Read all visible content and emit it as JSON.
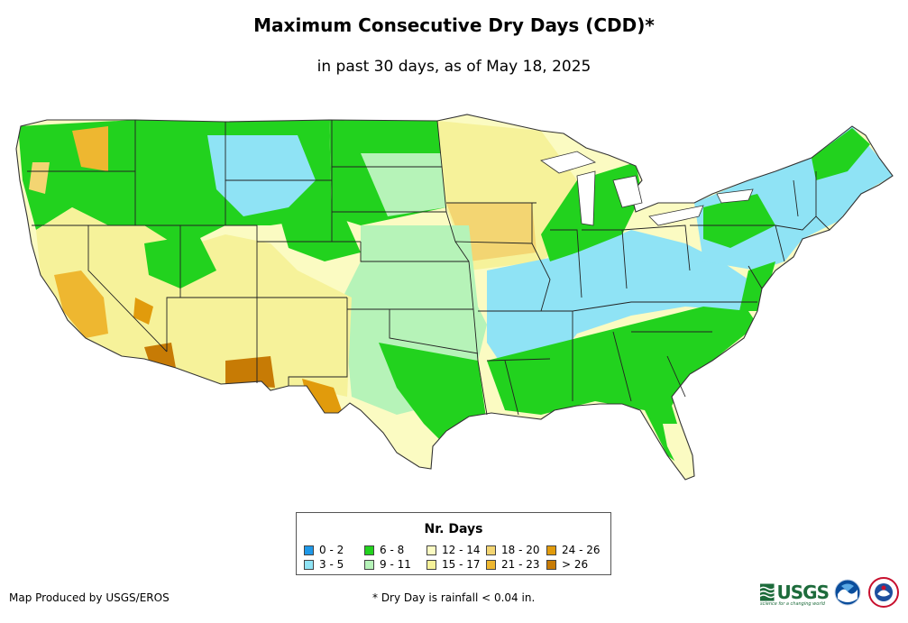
{
  "header": {
    "title": "Maximum Consecutive Dry Days (CDD)*",
    "subtitle": "in past 30 days, as of May 18, 2025"
  },
  "legend": {
    "title": "Nr. Days",
    "items": [
      {
        "label": "0 - 2",
        "color": "#1f98e8"
      },
      {
        "label": "3 - 5",
        "color": "#8fe3f5"
      },
      {
        "label": "6 - 8",
        "color": "#22d21e"
      },
      {
        "label": "9 - 11",
        "color": "#b6f3b8"
      },
      {
        "label": "12 - 14",
        "color": "#fbfbc2"
      },
      {
        "label": "15 - 17",
        "color": "#f6f29a"
      },
      {
        "label": "18 - 20",
        "color": "#f3d572"
      },
      {
        "label": "21 - 23",
        "color": "#eeb730"
      },
      {
        "label": "24 - 26",
        "color": "#e19b0c"
      },
      {
        "label": "> 26",
        "color": "#c77b05"
      }
    ]
  },
  "footer": {
    "credit": "Map Produced by USGS/EROS",
    "footnote": "* Dry Day is rainfall < 0.04 in.",
    "logos": {
      "usgs": "USGS",
      "usgs_tag": "science for a changing world",
      "noaa": "NOAA",
      "nws": "National Weather Service"
    }
  },
  "colors": {
    "state_border": "#222222",
    "map_outline": "#333333"
  }
}
